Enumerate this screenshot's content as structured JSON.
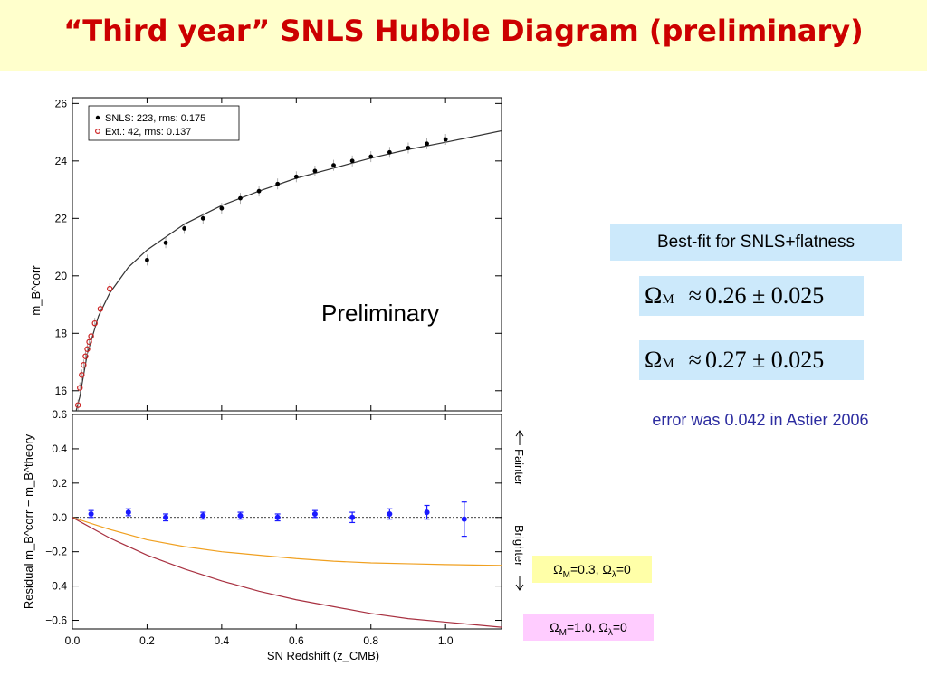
{
  "slide": {
    "title": "“Third year” SNLS Hubble Diagram (preliminary)"
  },
  "chart_data": [
    {
      "type": "scatter",
      "panel": "hubble-diagram",
      "xlim": [
        0.0,
        1.15
      ],
      "ylim": [
        15.3,
        26.2
      ],
      "yticks": [
        16,
        18,
        20,
        22,
        24,
        26
      ],
      "ylabel": "m_B^corr",
      "xlabel": "",
      "legend": {
        "location": "top-left",
        "entries": [
          "SNLS: 223, rms: 0.175",
          "Ext.: 42, rms: 0.137"
        ]
      },
      "annotation": "Preliminary",
      "series": [
        {
          "name": "SNLS: 223, rms: 0.175",
          "color": "#000000",
          "marker": "filled-circle",
          "x": [
            0.2,
            0.25,
            0.3,
            0.35,
            0.4,
            0.45,
            0.5,
            0.55,
            0.6,
            0.65,
            0.7,
            0.75,
            0.8,
            0.85,
            0.9,
            0.95,
            1.0
          ],
          "y": [
            20.55,
            21.15,
            21.65,
            22.0,
            22.35,
            22.7,
            22.95,
            23.2,
            23.45,
            23.65,
            23.85,
            24.0,
            24.15,
            24.3,
            24.45,
            24.6,
            24.75
          ]
        },
        {
          "name": "Ext.: 42, rms: 0.137",
          "color": "#cc2222",
          "marker": "open-circle",
          "x": [
            0.015,
            0.02,
            0.025,
            0.03,
            0.035,
            0.04,
            0.045,
            0.05,
            0.06,
            0.075,
            0.1
          ],
          "y": [
            15.5,
            16.1,
            16.55,
            16.9,
            17.2,
            17.45,
            17.7,
            17.9,
            18.35,
            18.85,
            19.55
          ]
        }
      ],
      "curves": [
        {
          "name": "best-fit",
          "color": "#333333",
          "x": [
            0.01,
            0.02,
            0.04,
            0.07,
            0.1,
            0.15,
            0.2,
            0.3,
            0.4,
            0.5,
            0.6,
            0.7,
            0.8,
            0.9,
            1.0,
            1.15
          ],
          "y": [
            15.3,
            15.8,
            17.3,
            18.6,
            19.4,
            20.3,
            20.9,
            21.8,
            22.45,
            22.95,
            23.4,
            23.75,
            24.1,
            24.4,
            24.65,
            25.05
          ]
        }
      ]
    },
    {
      "type": "scatter",
      "panel": "residuals",
      "xlim": [
        0.0,
        1.15
      ],
      "ylim": [
        -0.65,
        0.6
      ],
      "xticks": [
        0.0,
        0.2,
        0.4,
        0.6,
        0.8,
        1.0
      ],
      "xtick_labels": [
        "0.0",
        "0.2",
        "0.4",
        "0.6",
        "0.8",
        "1.0"
      ],
      "yticks": [
        -0.6,
        -0.4,
        -0.2,
        0.0,
        0.2,
        0.4,
        0.6
      ],
      "ytick_labels": [
        "−0.6",
        "−0.4",
        "−0.2",
        "0.0",
        "0.2",
        "0.4",
        "0.6"
      ],
      "xlabel": "SN Redshift (z_CMB)",
      "ylabel": "Residual  m_B^corr − m_B^theory",
      "side_labels": {
        "fainter": "Fainter",
        "brighter": "Brighter"
      },
      "binned": {
        "name": "binned residuals",
        "color": "#1a1aff",
        "x": [
          0.05,
          0.15,
          0.25,
          0.35,
          0.45,
          0.55,
          0.65,
          0.75,
          0.85,
          0.95,
          1.05
        ],
        "y": [
          0.02,
          0.03,
          0.0,
          0.01,
          0.01,
          0.0,
          0.02,
          0.0,
          0.02,
          0.03,
          -0.01
        ],
        "err": [
          0.02,
          0.02,
          0.02,
          0.02,
          0.02,
          0.02,
          0.02,
          0.03,
          0.03,
          0.04,
          0.1
        ]
      },
      "curves": [
        {
          "name": "Ω_M=0.3, Ω_λ=0",
          "color": "#f0a020",
          "x": [
            0.0,
            0.1,
            0.2,
            0.3,
            0.4,
            0.5,
            0.6,
            0.7,
            0.8,
            0.9,
            1.0,
            1.15
          ],
          "y": [
            0.0,
            -0.07,
            -0.13,
            -0.17,
            -0.2,
            -0.22,
            -0.24,
            -0.255,
            -0.265,
            -0.27,
            -0.275,
            -0.28
          ]
        },
        {
          "name": "Ω_M=1.0, Ω_λ=0",
          "color": "#a83040",
          "x": [
            0.0,
            0.1,
            0.2,
            0.3,
            0.4,
            0.5,
            0.6,
            0.7,
            0.8,
            0.9,
            1.0,
            1.15
          ],
          "y": [
            0.0,
            -0.12,
            -0.22,
            -0.3,
            -0.37,
            -0.43,
            -0.48,
            -0.52,
            -0.56,
            -0.59,
            -0.61,
            -0.64
          ]
        }
      ]
    }
  ],
  "panel": {
    "bestfit_label": "Best-fit for SNLS+flatness",
    "omega_symbol": "Ω",
    "omega_sub": "M",
    "approx": "≈",
    "fit1": "0.26 ± 0.025",
    "fit2": "0.27 ± 0.025",
    "note": "error was 0.042 in Astier 2006"
  },
  "legend_boxes": {
    "om03": {
      "prefix": "Ω",
      "sub1": "M",
      "mid": "=0.3, Ω",
      "sub2": "λ",
      "suffix": "=0"
    },
    "om10": {
      "prefix": "Ω",
      "sub1": "M",
      "mid": "=1.0, Ω",
      "sub2": "λ",
      "suffix": "=0"
    }
  },
  "colors": {
    "title": "#cc0000",
    "title_band": "#ffffcc",
    "fit_box": "#cce9fb",
    "note_text": "#2c2ca0",
    "legend_om03": "#ffffa8",
    "legend_om10": "#ffccff"
  }
}
